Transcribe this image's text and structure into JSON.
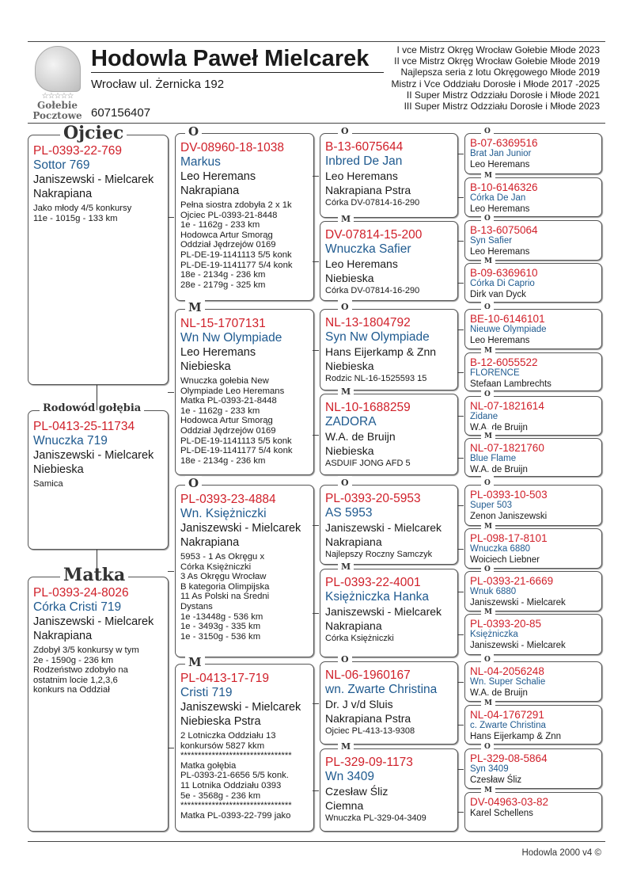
{
  "header": {
    "title": "Hodowla Paweł Mielcarek",
    "address": "Wrocław ul. Żernicka 192",
    "phone": "607156407",
    "logo_text": [
      "Gołebie",
      "Pocztowe"
    ],
    "achievements": [
      "I vce Mistrz Okręg Wrocław Gołebie Młode 2023",
      "II vce Mistrz Okręg Wrocław Gołebie Młode 2019",
      "Najlepsza seria z lotu Okręgowego Młode 2019",
      "Mistrz i Vce Oddziału Dorosłe i Młode  2017 -2025",
      "II Super Mistrz Odzziału Dorosłe i Młode 2021",
      "III Super Mistrz Odzziału Dorosłe i Młode 2023"
    ]
  },
  "colors": {
    "ring": "#d0202a",
    "name": "#1f5a8f",
    "text": "#1a1a1a"
  },
  "gen1": [
    {
      "label": "Ojciec",
      "ring": "PL-0393-22-769",
      "name": "Sottor 769",
      "breeder": "Janiszewski - Mielcarek",
      "color": "Nakrapiana",
      "notes": "Jako młody 4/5 konkursy\n11e - 1015g - 133 km"
    },
    {
      "label": "Rodowód gołębia",
      "ring": "PL-0413-25-11734",
      "name": "Wnuczka 719",
      "breeder": "Janiszewski - Mielcarek",
      "color": "Niebieska",
      "notes": "Samica"
    },
    {
      "label": "Matka",
      "ring": "PL-0393-24-8026",
      "name": "Córka Cristi 719",
      "breeder": "Janiszewski - Mielcarek",
      "color": "Nakrapiana",
      "notes": "Zdobył 3/5 konkursy w tym\n2e - 1590g - 236 km\nRodzeństwo zdobyło na\nostatnim locie 1,2,3,6\nkonkurs na Oddział"
    }
  ],
  "gen2": [
    {
      "label": "O",
      "ring": "DV-08960-18-1038",
      "name": "Markus",
      "breeder": "Leo Heremans",
      "color": "Nakrapiana",
      "notes": "Pełna siostra zdobyła 2 x 1k\nOjciec  PL-0393-21-8448\n1e - 1162g - 233 km\nHodowca Artur Smorąg\nOddział Jędrzejów 0169\nPL-DE-19-1141113 5/5 konk\nPL-DE-19-1141177 5/4 konk\n18e - 2134g - 236 km\n28e - 2179g - 325 km"
    },
    {
      "label": "M",
      "ring": "NL-15-1707131",
      "name": "Wn Nw Olympiade",
      "breeder": "Leo Heremans",
      "color": "Niebieska",
      "notes": "Wnuczka  gołebia New\nOlympiade Leo Heremans\nMatka  PL-0393-21-8448\n1e - 1162g - 233 km\nHodowca Artur Smorąg\nOddział Jędrzejów 0169\nPL-DE-19-1141113 5/5 konk\nPL-DE-19-1141177 5/4 konk\n18e - 2134g - 236 km"
    },
    {
      "label": "O",
      "ring": "PL-0393-23-4884",
      "name": "Wn. Księżniczki",
      "breeder": "Janiszewski - Mielcarek",
      "color": "Nakrapiana",
      "notes": "5953 - 1 As Okręgu  x\nCórka Księżniczki\n3 As Okręgu Wrocław\nB kategoria Olimpijska\n11 As Polski na Średni\nDystans\n1e -13448g - 536 km\n1e - 3493g - 335 km\n1e - 3150g - 536 km"
    },
    {
      "label": "M",
      "ring": "PL-0413-17-719",
      "name": "Cristi 719",
      "breeder": "Janiszewski - Mielcarek",
      "color": "Niebieska Pstra",
      "notes": "2 Lotniczka Oddziału 13\nkonkursów 5827 kkm\n********************************\nMatka gołębia\nPL-0393-21-6656 5/5 konk.\n11 Lotnika Oddziału 0393\n5e - 3568g - 236 km\n********************************\nMatka PL-0393-22-799 jako"
    }
  ],
  "gen3": [
    {
      "label": "O",
      "ring": "B-13-6075644",
      "name": "Inbred De Jan",
      "breeder": "Leo Heremans",
      "color": "Nakrapiana Pstra",
      "notes": "Córka DV-07814-16-290"
    },
    {
      "label": "M",
      "ring": "DV-07814-15-200",
      "name": "Wnuczka Safier",
      "breeder": "Leo Heremans",
      "color": "Niebieska",
      "notes": "Córka DV-07814-16-290"
    },
    {
      "label": "O",
      "ring": "NL-13-1804792",
      "name": "Syn Nw Olympiade",
      "breeder": "Hans Eijerkamp & Znn",
      "color": "Niebieska",
      "notes": "Rodzic NL-16-1525593 15"
    },
    {
      "label": "M",
      "ring": "NL-10-1688259",
      "name": "ZADORA",
      "breeder": "W.A. de Bruijn",
      "color": "Niebieska",
      "notes": "ASDUIF JONG AFD 5"
    },
    {
      "label": "O",
      "ring": "PL-0393-20-5953",
      "name": "AS 5953",
      "breeder": "Janiszewski - Mielcarek",
      "color": "Nakrapiana",
      "notes": "Najlepszy Roczny Samczyk"
    },
    {
      "label": "M",
      "ring": "PL-0393-22-4001",
      "name": "Księżniczka Hanka",
      "breeder": "Janiszewski - Mielcarek",
      "color": "Nakrapiana",
      "notes": "Córka Księżniczki"
    },
    {
      "label": "O",
      "ring": "NL-06-1960167",
      "name": "wn. Zwarte Christina",
      "breeder": "Dr. J v/d Sluis",
      "color": "Nakrapiana Pstra",
      "notes": "Ojciec PL-413-13-9308"
    },
    {
      "label": "M",
      "ring": "PL-329-09-1173",
      "name": "Wn 3409",
      "breeder": "Czesław Śliz",
      "color": " Ciemna",
      "notes": "Wnuczka PL-329-04-3409"
    }
  ],
  "gen4": [
    {
      "label": "O",
      "ring": "B-07-6369516",
      "name": "Brat Jan Junior",
      "breeder": "Leo Heremans"
    },
    {
      "label": "M",
      "ring": "B-10-6146326",
      "name": "Córka De Jan",
      "breeder": "Leo Heremans"
    },
    {
      "label": "O",
      "ring": "B-13-6075064",
      "name": "Syn Safier",
      "breeder": "Leo Heremans"
    },
    {
      "label": "M",
      "ring": "B-09-6369610",
      "name": "Córka Di Caprio",
      "breeder": "Dirk van Dyck"
    },
    {
      "label": "O",
      "ring": "BE-10-6146101",
      "name": "Nieuwe Olympiade",
      "breeder": "Leo Heremans"
    },
    {
      "label": "M",
      "ring": "B-12-6055522",
      "name": "FLORENCE",
      "breeder": "Stefaan Lambrechts"
    },
    {
      "label": "O",
      "ring": "NL-07-1821614",
      "name": "Zidane",
      "breeder": "W.A. de Bruijn"
    },
    {
      "label": "M",
      "ring": "NL-07-1821760",
      "name": "Blue Flame",
      "breeder": "W.A. de Bruijn"
    },
    {
      "label": "O",
      "ring": "PL-0393-10-503",
      "name": "Super 503",
      "breeder": "Zenon Janiszewski"
    },
    {
      "label": "M",
      "ring": "PL-098-17-8101",
      "name": "Wnuczka 6880",
      "breeder": "Wojciech Liebner"
    },
    {
      "label": "O",
      "ring": "PL-0393-21-6669",
      "name": "Wnuk 6880",
      "breeder": "Janiszewski - Mielcarek"
    },
    {
      "label": "M",
      "ring": "PL-0393-20-85",
      "name": "Księżniczka",
      "breeder": "Janiszewski - Mielcarek"
    },
    {
      "label": "O",
      "ring": "NL-04-2056248",
      "name": "Wn. Super Schalie",
      "breeder": "W.A. de Bruijn"
    },
    {
      "label": "M",
      "ring": "NL-04-1767291",
      "name": "c. Zwarte Christina",
      "breeder": "Hans Eijerkamp & Znn"
    },
    {
      "label": "O",
      "ring": "PL-329-08-5864",
      "name": "Syn 3409",
      "breeder": "Czesław Śliz"
    },
    {
      "label": "M",
      "ring": "DV-04963-03-82",
      "name": "",
      "breeder": "Karel Schellens"
    }
  ],
  "footer": "Hodowla 2000 v4 ©"
}
